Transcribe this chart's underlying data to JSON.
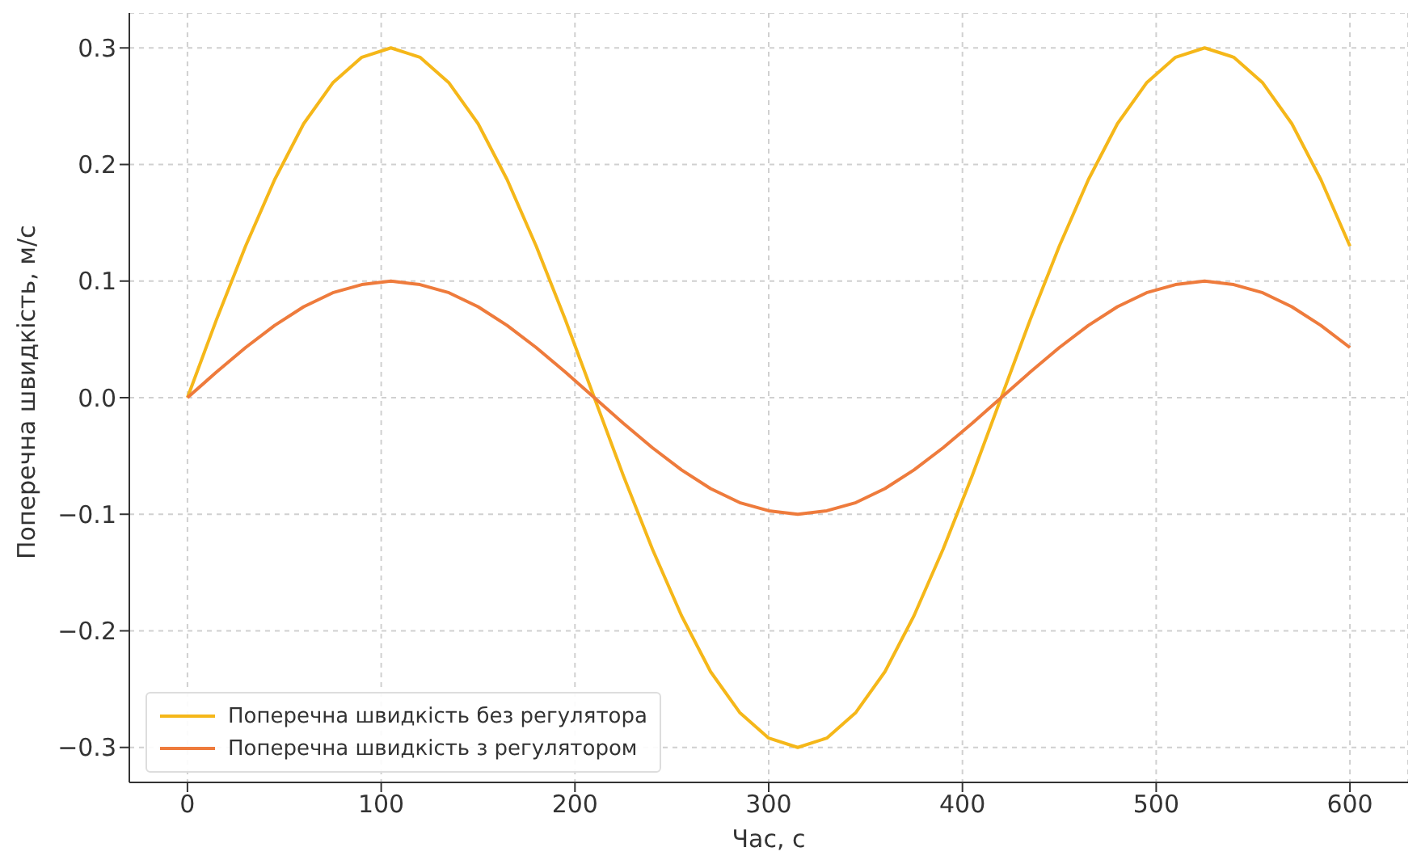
{
  "chart_data": {
    "type": "line",
    "xlabel": "Час, с",
    "ylabel": "Поперечна швидкість, м/с",
    "x": [
      0,
      15,
      30,
      45,
      60,
      75,
      90,
      105,
      120,
      135,
      150,
      165,
      180,
      195,
      210,
      225,
      240,
      255,
      270,
      285,
      300,
      315,
      330,
      345,
      360,
      375,
      390,
      405,
      420,
      435,
      450,
      465,
      480,
      495,
      510,
      525,
      540,
      555,
      570,
      585,
      600
    ],
    "series": [
      {
        "name": "Поперечна швидкість без регулятора",
        "color": "#f5b719",
        "values": [
          0,
          0.067,
          0.13,
          0.187,
          0.235,
          0.27,
          0.292,
          0.3,
          0.292,
          0.27,
          0.235,
          0.187,
          0.13,
          0.067,
          0,
          -0.067,
          -0.13,
          -0.187,
          -0.235,
          -0.27,
          -0.292,
          -0.3,
          -0.292,
          -0.27,
          -0.235,
          -0.187,
          -0.13,
          -0.067,
          0,
          0.067,
          0.13,
          0.187,
          0.235,
          0.27,
          0.292,
          0.3,
          0.292,
          0.27,
          0.235,
          0.187,
          0.13
        ]
      },
      {
        "name": "Поперечна швидкість з регулятором",
        "color": "#ee7b3c",
        "values": [
          0,
          0.022,
          0.043,
          0.062,
          0.078,
          0.09,
          0.097,
          0.1,
          0.097,
          0.09,
          0.078,
          0.062,
          0.043,
          0.022,
          0,
          -0.022,
          -0.043,
          -0.062,
          -0.078,
          -0.09,
          -0.097,
          -0.1,
          -0.097,
          -0.09,
          -0.078,
          -0.062,
          -0.043,
          -0.022,
          0,
          0.022,
          0.043,
          0.062,
          0.078,
          0.09,
          0.097,
          0.1,
          0.097,
          0.09,
          0.078,
          0.062,
          0.043
        ]
      }
    ],
    "xlim": [
      -30,
      630
    ],
    "xticks": [
      0,
      100,
      200,
      300,
      400,
      500,
      600
    ],
    "ylim": [
      -0.33,
      0.33
    ],
    "yticks": [
      {
        "value": -0.3,
        "label": "−0.3"
      },
      {
        "value": -0.2,
        "label": "−0.2"
      },
      {
        "value": -0.1,
        "label": "−0.1"
      },
      {
        "value": 0,
        "label": "0.0"
      },
      {
        "value": 0.1,
        "label": "0.1"
      },
      {
        "value": 0.2,
        "label": "0.2"
      },
      {
        "value": 0.3,
        "label": "0.3"
      }
    ],
    "grid": true,
    "legend": "bottom left",
    "marker": "none",
    "line_style": "solid"
  }
}
